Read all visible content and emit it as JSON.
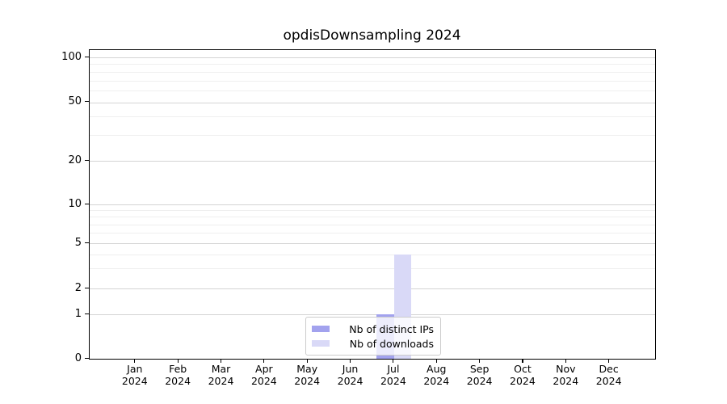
{
  "title": "opdisDownsampling 2024",
  "chart_data": {
    "type": "bar",
    "title": "opdisDownsampling 2024",
    "categories": [
      "Jan",
      "Feb",
      "Mar",
      "Apr",
      "May",
      "Jun",
      "Jul",
      "Aug",
      "Sep",
      "Oct",
      "Nov",
      "Dec"
    ],
    "year_label": "2024",
    "series": [
      {
        "name": "Nb of distinct IPs",
        "color": "#a2a2ee",
        "values": [
          0,
          0,
          0,
          0,
          0,
          0,
          1,
          0,
          0,
          0,
          0,
          0
        ]
      },
      {
        "name": "Nb of downloads",
        "color": "#d9d9f7",
        "values": [
          0,
          0,
          0,
          0,
          0,
          0,
          4,
          0,
          0,
          0,
          0,
          0
        ]
      }
    ],
    "xlabel": "",
    "ylabel": "",
    "yticks": [
      0,
      1,
      2,
      5,
      10,
      20,
      50,
      100
    ],
    "minor_gridlines": [
      3,
      4,
      6,
      7,
      8,
      9,
      30,
      40,
      60,
      70,
      80,
      90
    ],
    "ylim": [
      0,
      100
    ],
    "scale": "symlog",
    "grid": "horizontal-major-and-minor",
    "legend_position": "lower center"
  },
  "colors": {
    "distinct_ips": "#a2a2ee",
    "downloads": "#d9d9f7",
    "grid_major": "#d4d4d4",
    "grid_minor": "#efefef",
    "spine": "#000000",
    "background": "#ffffff"
  }
}
